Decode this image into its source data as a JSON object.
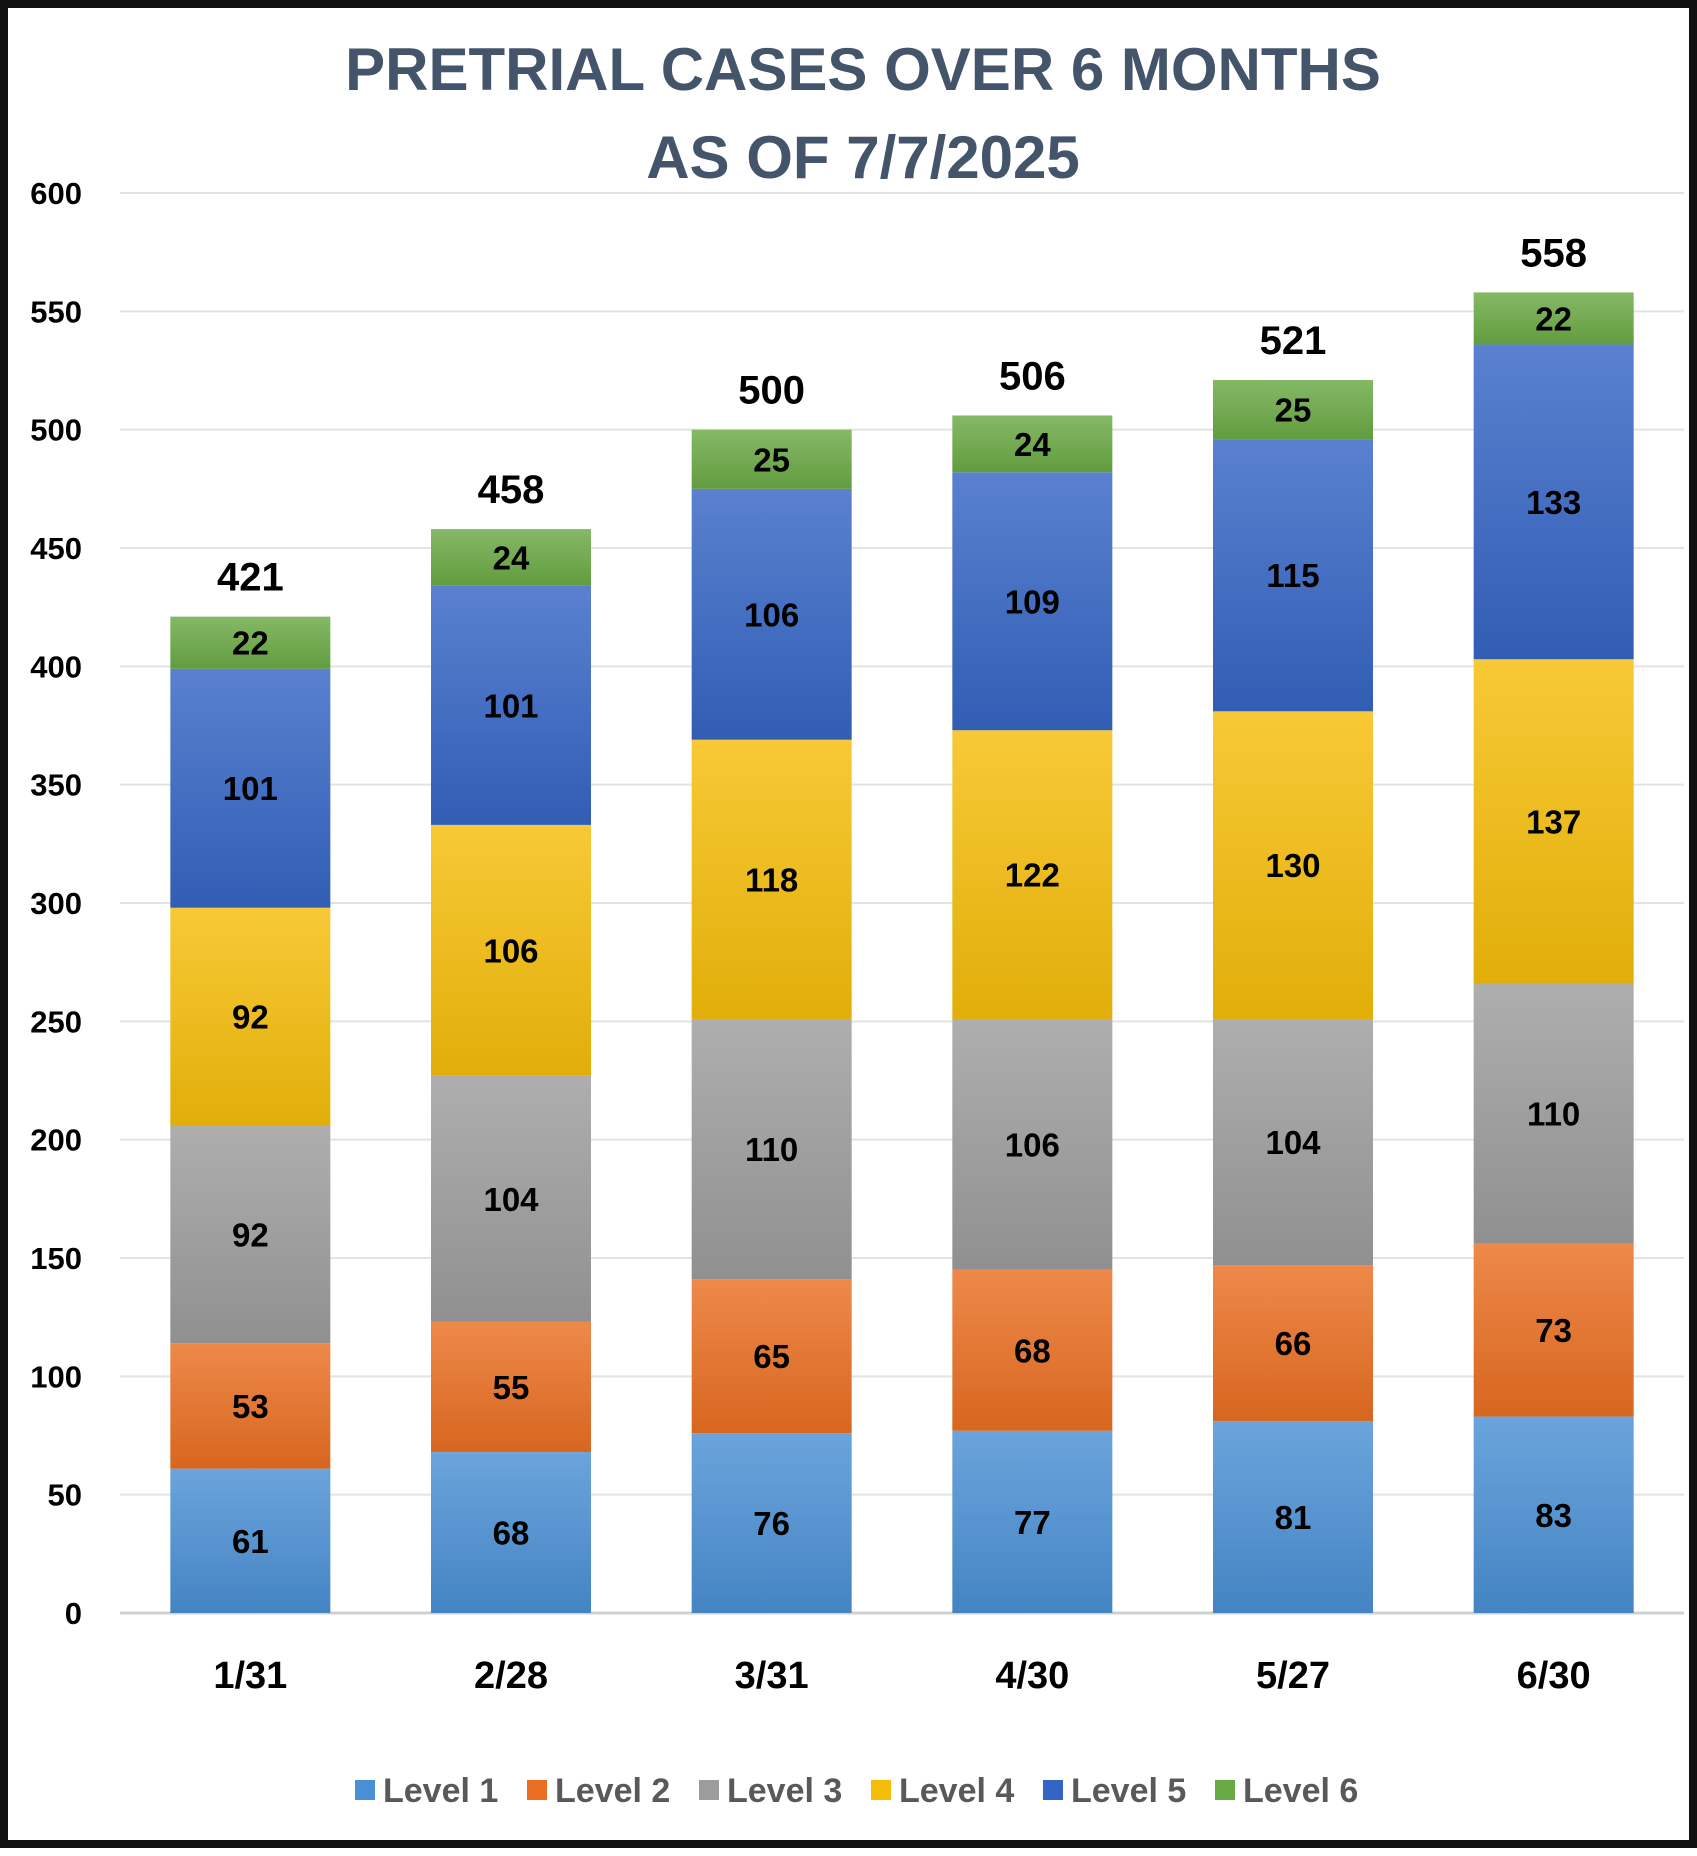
{
  "chart_data": {
    "type": "bar",
    "stacked": true,
    "title": [
      "PRETRIAL CASES OVER 6 MONTHS",
      "AS OF 7/7/2025"
    ],
    "categories": [
      "1/31",
      "2/28",
      "3/31",
      "4/30",
      "5/27",
      "6/30"
    ],
    "series": [
      {
        "name": "Level 1",
        "color": "#4a90d4",
        "values": [
          61,
          68,
          76,
          77,
          81,
          83
        ]
      },
      {
        "name": "Level 2",
        "color": "#ea6f22",
        "values": [
          53,
          55,
          65,
          68,
          66,
          73
        ]
      },
      {
        "name": "Level 3",
        "color": "#9c9c9c",
        "values": [
          92,
          104,
          110,
          106,
          104,
          110
        ]
      },
      {
        "name": "Level 4",
        "color": "#f5bd0a",
        "values": [
          92,
          106,
          118,
          122,
          130,
          137
        ]
      },
      {
        "name": "Level 5",
        "color": "#3565c4",
        "values": [
          101,
          101,
          106,
          109,
          115,
          133
        ]
      },
      {
        "name": "Level 6",
        "color": "#6aaa45",
        "values": [
          22,
          24,
          25,
          24,
          25,
          22
        ]
      }
    ],
    "totals": [
      421,
      458,
      500,
      506,
      521,
      558
    ],
    "yticks": [
      0,
      50,
      100,
      150,
      200,
      250,
      300,
      350,
      400,
      450,
      500,
      550,
      600
    ],
    "ylim": [
      0,
      600
    ],
    "xlabel": "",
    "ylabel": "",
    "grid": true,
    "legend": "bottom"
  }
}
